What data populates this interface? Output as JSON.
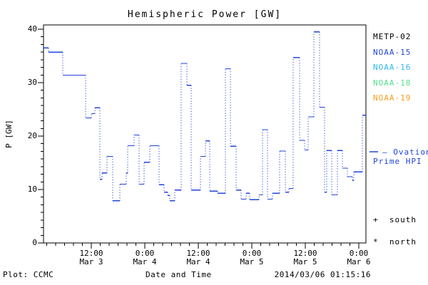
{
  "title": "Hemispheric Power [GW]",
  "axes": {
    "ylabel": "P [GW]",
    "xlabel": "Date and Time",
    "y_ticks": [
      {
        "label": "0",
        "value": 0
      },
      {
        "label": "10",
        "value": 10
      },
      {
        "label": "20",
        "value": 20
      },
      {
        "label": "30",
        "value": 30
      },
      {
        "label": "40",
        "value": 40
      }
    ],
    "x_ticks": [
      {
        "time": "12:00",
        "date": "Mar 3",
        "t": 12
      },
      {
        "time": "0:00",
        "date": "Mar 4",
        "t": 24
      },
      {
        "time": "12:00",
        "date": "Mar 4",
        "t": 36
      },
      {
        "time": "0:00",
        "date": "Mar 5",
        "t": 48
      },
      {
        "time": "12:00",
        "date": "Mar 5",
        "t": 60
      },
      {
        "time": "0:00",
        "date": "Mar 6",
        "t": 72
      }
    ]
  },
  "legend": {
    "satellites": [
      {
        "label": "METP-02",
        "color": "#000000"
      },
      {
        "label": "NOAA-15",
        "color": "#2245db"
      },
      {
        "label": "NOAA-16",
        "color": "#2eb6f0"
      },
      {
        "label": "NOAA-18",
        "color": "#53e08c"
      },
      {
        "label": "NOAA-19",
        "color": "#f2a01e"
      }
    ],
    "line_sample_color": "#2245db",
    "line_label_line1": "– Ovation",
    "line_label_line2": "Prime HPI",
    "south_marker": "+",
    "south_label": "south",
    "north_marker": "*",
    "north_label": "north"
  },
  "footer": {
    "left": "Plot: CCMC",
    "center": "Date and Time",
    "right": "2014/03/06 01:15:16"
  },
  "chart_data": {
    "type": "line",
    "subtype": "step-with-dotted-risers",
    "title": "Hemispheric Power [GW]",
    "xlabel": "Date and Time",
    "ylabel": "P [GW]",
    "series_name": "Ovation Prime HPI",
    "line_color": "#2245db",
    "ylim": [
      0,
      40
    ],
    "x_unit": "hours since 2014-03-03 00:00 UT",
    "xlim": [
      1.28,
      73.6
    ],
    "x_major_tick_hours": [
      12,
      24,
      36,
      48,
      60,
      72
    ],
    "x_minor_tick_step_hours": 2,
    "grid": false,
    "segments_t_start_t_end_gw": [
      [
        1.28,
        2.4,
        36.5
      ],
      [
        2.4,
        5.6,
        35.7
      ],
      [
        5.6,
        10.72,
        31.4
      ],
      [
        10.72,
        12.0,
        23.4
      ],
      [
        12.0,
        12.8,
        24.2
      ],
      [
        12.8,
        13.92,
        25.3
      ],
      [
        13.92,
        14.4,
        11.9
      ],
      [
        14.4,
        15.52,
        13.1
      ],
      [
        15.52,
        16.8,
        16.2
      ],
      [
        16.8,
        18.4,
        7.9
      ],
      [
        18.4,
        19.84,
        11.0
      ],
      [
        19.84,
        20.16,
        13.1
      ],
      [
        20.16,
        21.6,
        18.2
      ],
      [
        21.6,
        22.72,
        20.2
      ],
      [
        22.72,
        23.84,
        11.0
      ],
      [
        23.84,
        25.12,
        15.1
      ],
      [
        25.12,
        27.2,
        18.2
      ],
      [
        27.2,
        28.32,
        10.9
      ],
      [
        28.32,
        29.12,
        9.5
      ],
      [
        29.12,
        29.6,
        8.9
      ],
      [
        29.6,
        30.72,
        7.9
      ],
      [
        30.72,
        32.16,
        9.9
      ],
      [
        32.16,
        33.44,
        33.6
      ],
      [
        33.44,
        34.4,
        29.5
      ],
      [
        34.4,
        36.48,
        9.9
      ],
      [
        36.48,
        37.6,
        16.2
      ],
      [
        37.6,
        38.56,
        19.1
      ],
      [
        38.56,
        40.32,
        9.7
      ],
      [
        40.32,
        42.08,
        9.3
      ],
      [
        42.08,
        43.2,
        32.6
      ],
      [
        43.2,
        44.48,
        18.1
      ],
      [
        44.48,
        45.6,
        9.9
      ],
      [
        45.6,
        46.72,
        8.2
      ],
      [
        46.72,
        47.52,
        9.3
      ],
      [
        47.52,
        49.6,
        8.1
      ],
      [
        49.6,
        50.4,
        9.0
      ],
      [
        50.4,
        51.52,
        21.2
      ],
      [
        51.52,
        52.64,
        8.2
      ],
      [
        52.64,
        54.24,
        9.3
      ],
      [
        54.24,
        55.52,
        17.2
      ],
      [
        55.52,
        56.32,
        9.5
      ],
      [
        56.32,
        57.28,
        10.2
      ],
      [
        57.28,
        58.72,
        34.7
      ],
      [
        58.72,
        59.84,
        19.2
      ],
      [
        59.84,
        60.64,
        17.4
      ],
      [
        60.64,
        61.92,
        23.6
      ],
      [
        61.92,
        63.2,
        39.5
      ],
      [
        63.2,
        64.32,
        25.4
      ],
      [
        64.32,
        64.8,
        9.5
      ],
      [
        64.8,
        65.92,
        17.3
      ],
      [
        65.92,
        67.2,
        9.0
      ],
      [
        67.2,
        68.32,
        17.3
      ],
      [
        68.32,
        69.44,
        14.0
      ],
      [
        69.44,
        70.56,
        12.4
      ],
      [
        70.56,
        70.88,
        11.7
      ],
      [
        70.88,
        72.8,
        13.3
      ],
      [
        72.8,
        73.6,
        23.9
      ]
    ]
  }
}
